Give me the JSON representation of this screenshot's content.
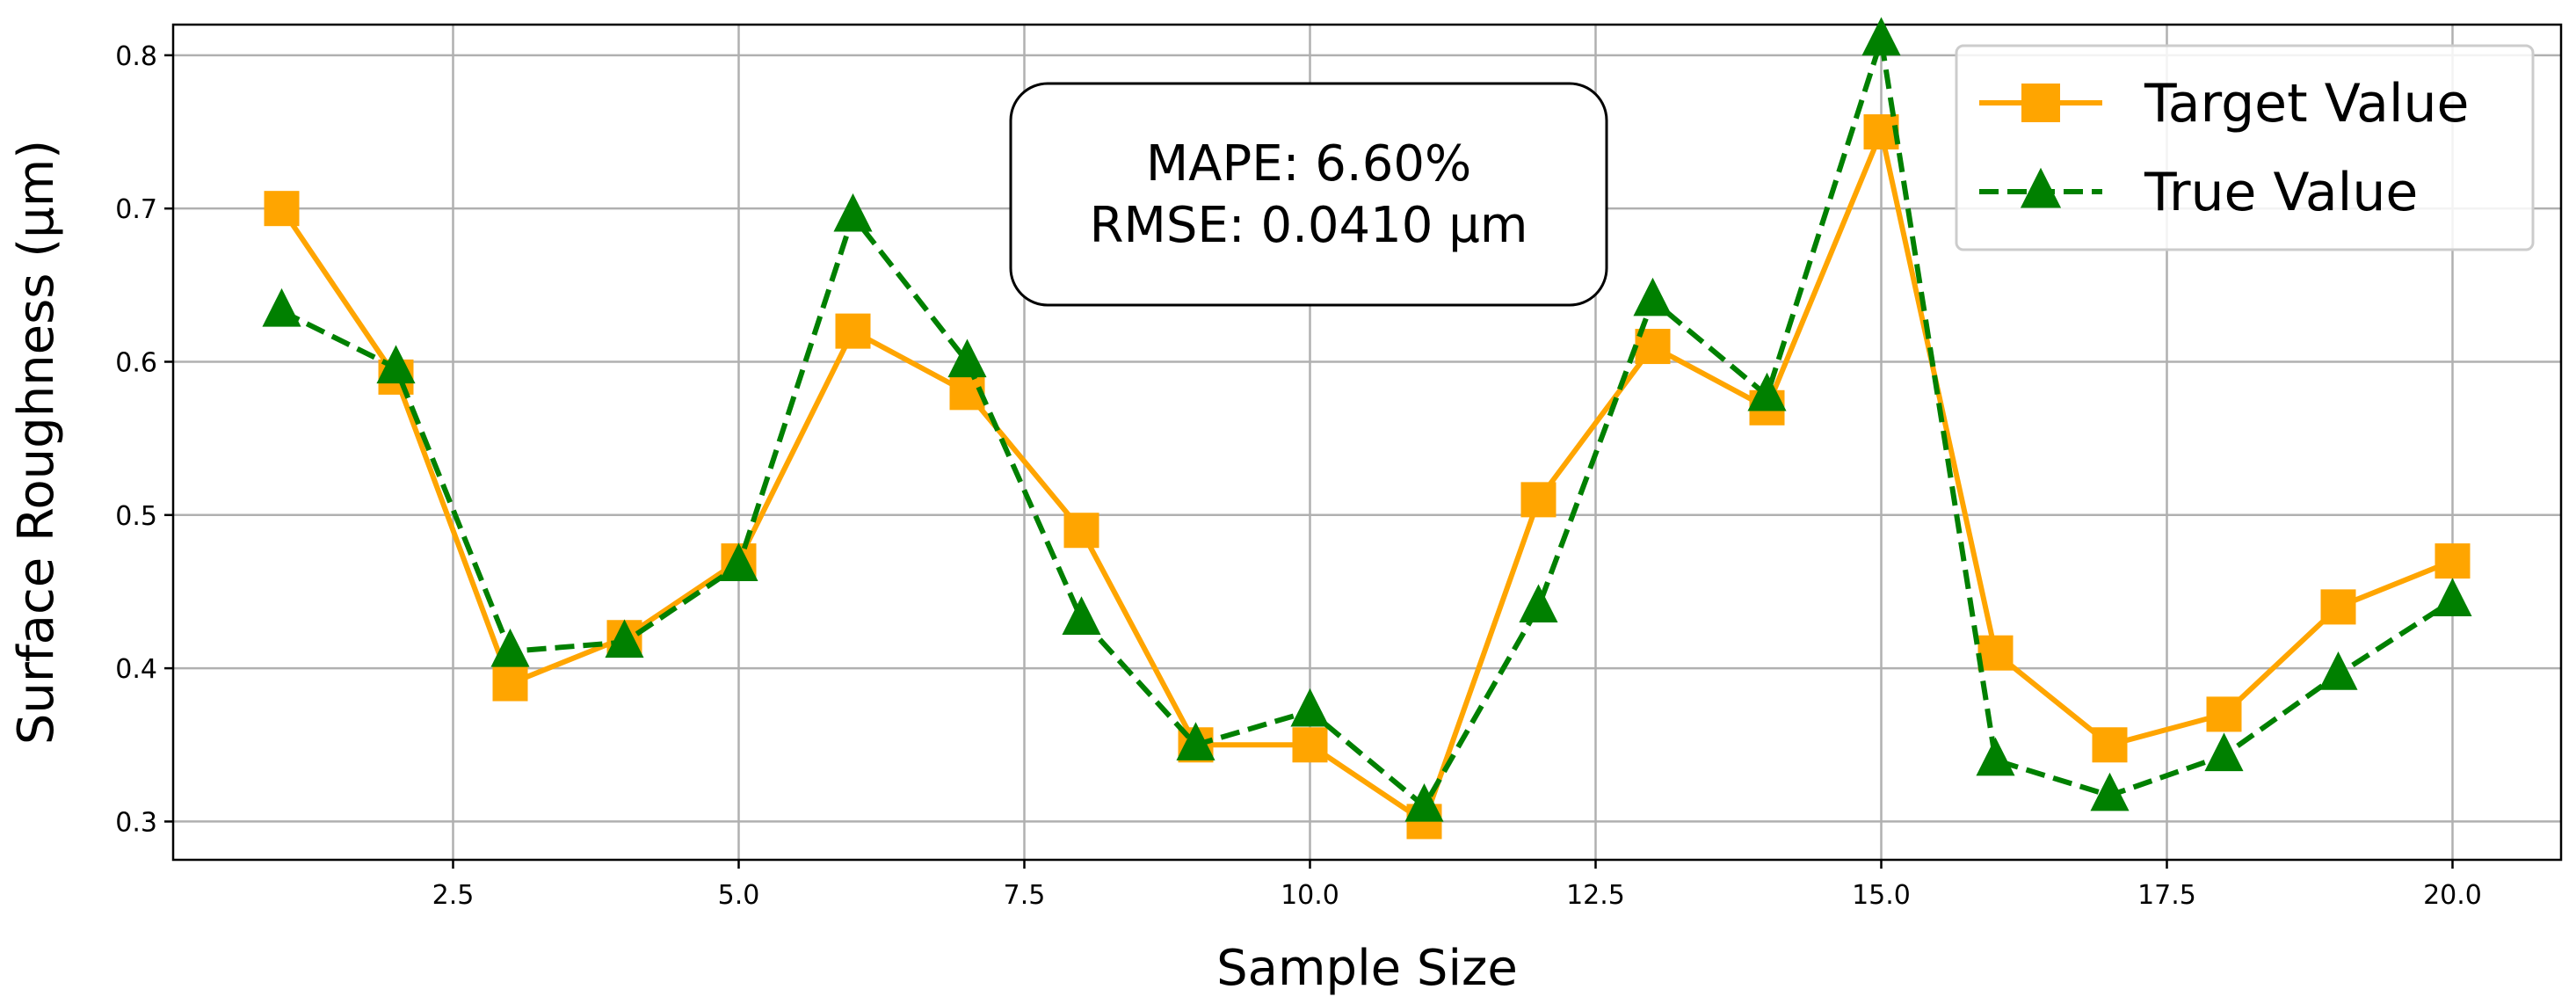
{
  "chart_data": {
    "type": "line",
    "title": "",
    "xlabel": "Sample Size",
    "ylabel": "Surface Roughness (μm)",
    "xlim": [
      0.05,
      20.95
    ],
    "ylim": [
      0.275,
      0.82
    ],
    "xticks": [
      2.5,
      5.0,
      7.5,
      10.0,
      12.5,
      15.0,
      17.5,
      20.0
    ],
    "xtick_labels": [
      "2.5",
      "5.0",
      "7.5",
      "10.0",
      "12.5",
      "15.0",
      "17.5",
      "20.0"
    ],
    "yticks": [
      0.3,
      0.4,
      0.5,
      0.6,
      0.7,
      0.8
    ],
    "ytick_labels": [
      "0.3",
      "0.4",
      "0.5",
      "0.6",
      "0.7",
      "0.8"
    ],
    "grid": true,
    "legend_position": "top-right",
    "x": [
      1,
      2,
      3,
      4,
      5,
      6,
      7,
      8,
      9,
      10,
      11,
      12,
      13,
      14,
      15,
      16,
      17,
      18,
      19,
      20
    ],
    "series": [
      {
        "name": "Target Value",
        "color": "#FFA500",
        "marker": "square",
        "linestyle": "solid",
        "values": [
          0.7,
          0.59,
          0.39,
          0.42,
          0.47,
          0.62,
          0.58,
          0.49,
          0.35,
          0.35,
          0.3,
          0.51,
          0.61,
          0.57,
          0.75,
          0.41,
          0.35,
          0.37,
          0.44,
          0.47
        ]
      },
      {
        "name": "True Value",
        "color": "#008000",
        "marker": "triangle",
        "linestyle": "dashed",
        "values": [
          0.633,
          0.596,
          0.411,
          0.417,
          0.467,
          0.695,
          0.6,
          0.432,
          0.35,
          0.372,
          0.31,
          0.44,
          0.64,
          0.578,
          0.81,
          0.34,
          0.317,
          0.343,
          0.396,
          0.444
        ]
      }
    ],
    "annotation": {
      "lines": [
        "MAPE: 6.60%",
        "RMSE: 0.0410 μm"
      ]
    }
  }
}
